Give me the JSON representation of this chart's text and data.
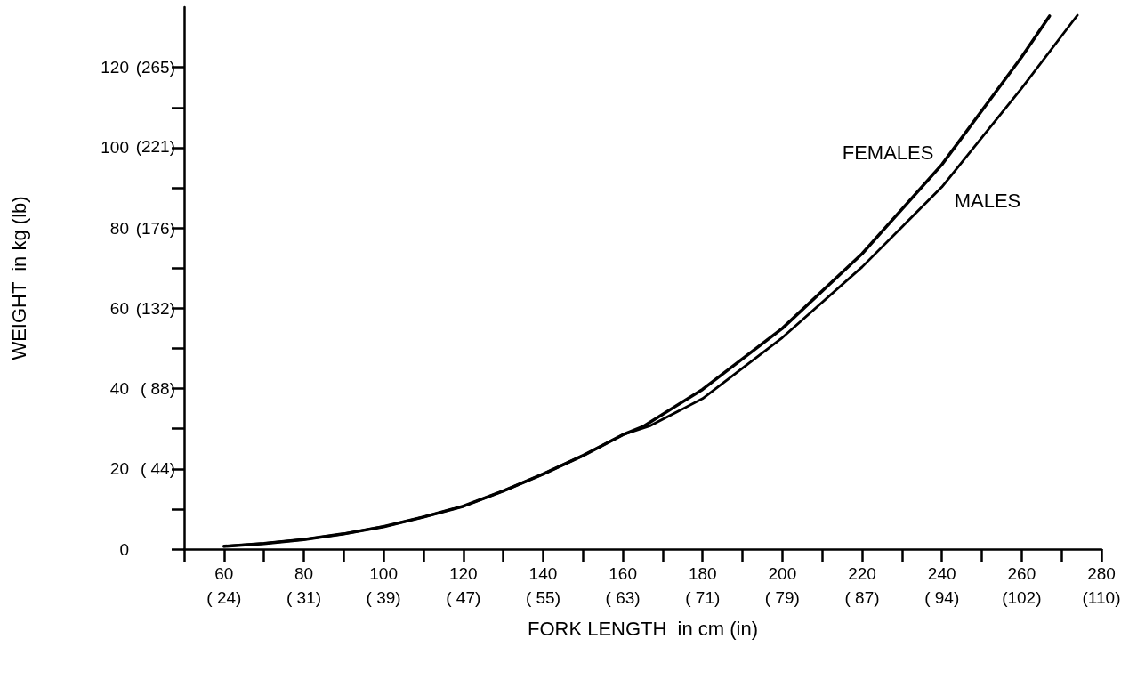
{
  "chart_data": {
    "type": "line",
    "xlabel": "FORK LENGTH  in cm (in)",
    "ylabel": "WEIGHT  in kg (lb)",
    "xlim": [
      50,
      280
    ],
    "ylim": [
      0,
      135
    ],
    "xticks": [
      {
        "value": 50,
        "label": null
      },
      60,
      {
        "value": 70,
        "label": null
      },
      80,
      {
        "value": 90,
        "label": null
      },
      100,
      {
        "value": 110,
        "label": null
      },
      120,
      {
        "value": 130,
        "label": null
      },
      140,
      {
        "value": 150,
        "label": null
      },
      160,
      {
        "value": 170,
        "label": null
      },
      180,
      {
        "value": 190,
        "label": null
      },
      200,
      {
        "value": 210,
        "label": null
      },
      220,
      {
        "value": 230,
        "label": null
      },
      240,
      {
        "value": 250,
        "label": null
      },
      260,
      {
        "value": 270,
        "label": null
      },
      280
    ],
    "x2lim": [
      19.685,
      110.236
    ],
    "x2ticks": [
      {
        "value": 23.62,
        "label": "( 24)"
      },
      {
        "value": 31.5,
        "label": "( 31)"
      },
      {
        "value": 39.37,
        "label": "( 39)"
      },
      {
        "value": 47.24,
        "label": "( 47)"
      },
      {
        "value": 55.12,
        "label": "( 55)"
      },
      {
        "value": 62.99,
        "label": "( 63)"
      },
      {
        "value": 70.87,
        "label": "( 71)"
      },
      {
        "value": 78.74,
        "label": "( 79)"
      },
      {
        "value": 86.61,
        "label": "( 87)"
      },
      {
        "value": 94.49,
        "label": "( 94)"
      },
      {
        "value": 102.36,
        "label": "(102)"
      },
      {
        "value": 110.236,
        "label": "(110)"
      }
    ],
    "yticks": [
      0,
      {
        "value": 10,
        "label": null
      },
      20,
      {
        "value": 30,
        "label": null
      },
      40,
      {
        "value": 50,
        "label": null
      },
      60,
      {
        "value": 70,
        "label": null
      },
      80,
      {
        "value": 90,
        "label": null
      },
      100,
      {
        "value": 110,
        "label": null
      },
      120
    ],
    "y2lim": [
      0,
      297.62
    ],
    "y2ticks": [
      {
        "value": 44.09,
        "label": "( 44)"
      },
      {
        "value": 88.18,
        "label": "( 88)"
      },
      {
        "value": 132.28,
        "label": "(132)"
      },
      {
        "value": 176.37,
        "label": "(176)"
      },
      {
        "value": 221,
        "label": "(221)"
      },
      {
        "value": 264.55,
        "label": "(265)"
      }
    ],
    "series": [
      {
        "name": "FEMALES",
        "color": "#000000",
        "x": [
          60,
          70,
          80,
          90,
          100,
          110,
          120,
          130,
          140,
          150,
          160,
          165,
          180,
          200,
          220,
          240,
          260,
          267
        ],
        "values": [
          0.7,
          1.4,
          2.4,
          3.8,
          5.6,
          8.0,
          10.7,
          14.5,
          18.7,
          23.3,
          28.5,
          30.5,
          39.8,
          55.0,
          73.6,
          95.8,
          122.6,
          132.8
        ]
      },
      {
        "name": "MALES",
        "color": "#000000",
        "x": [
          60,
          70,
          80,
          90,
          100,
          110,
          120,
          130,
          140,
          150,
          160,
          167,
          180,
          200,
          220,
          240,
          260,
          274
        ],
        "values": [
          0.7,
          1.4,
          2.4,
          3.8,
          5.6,
          8.0,
          10.7,
          14.5,
          18.7,
          23.3,
          28.5,
          30.8,
          37.5,
          52.7,
          70.3,
          90.2,
          114.8,
          133.0
        ]
      }
    ],
    "marker": "none",
    "grid": false,
    "legend": false
  }
}
